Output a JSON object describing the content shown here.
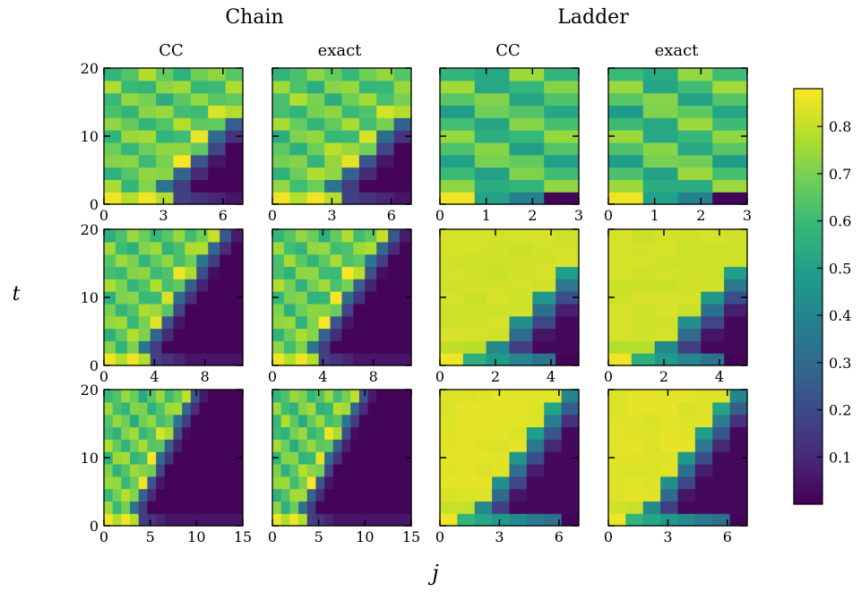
{
  "titles": {
    "group_left": "Chain",
    "group_right": "Ladder"
  },
  "column_titles": [
    "CC",
    "exact",
    "CC",
    "exact"
  ],
  "axis_labels": {
    "x": "j",
    "y": "t"
  },
  "colormap": {
    "name": "viridis",
    "range": [
      0,
      0.88
    ],
    "ticks": [
      0.1,
      0.2,
      0.3,
      0.4,
      0.5,
      0.6,
      0.7,
      0.8
    ],
    "tick_labels": [
      "0.1",
      "0.2",
      "0.3",
      "0.4",
      "0.5",
      "0.6",
      "0.7",
      "0.8"
    ],
    "stops": [
      "#440154",
      "#482878",
      "#3e4989",
      "#31688e",
      "#26828e",
      "#1f9e89",
      "#35b779",
      "#6ece58",
      "#b5de2b",
      "#fde725"
    ]
  },
  "chart_data": [
    {
      "type": "heatmap",
      "row": 1,
      "system": "Chain",
      "method": "CC",
      "xrange": [
        0,
        7
      ],
      "yrange": [
        0,
        20
      ],
      "xticks": [
        0,
        3,
        6
      ],
      "yticks": [
        0,
        10,
        20
      ],
      "nx": 8,
      "ny": 11,
      "grid": false,
      "description": "near 0.8 at j=0..3 for t<2, decaying to ~0 at j=5..7; ~0.6-0.75 elsewhere"
    },
    {
      "type": "heatmap",
      "row": 1,
      "system": "Chain",
      "method": "exact",
      "xrange": [
        0,
        7
      ],
      "yrange": [
        0,
        20
      ],
      "xticks": [
        0,
        3,
        6
      ],
      "yticks": [
        0,
        10,
        20
      ],
      "nx": 8,
      "ny": 11,
      "grid": false
    },
    {
      "type": "heatmap",
      "row": 1,
      "system": "Ladder",
      "method": "CC",
      "xrange": [
        0,
        3
      ],
      "yrange": [
        0,
        20
      ],
      "xticks": [
        0,
        1,
        2,
        3
      ],
      "yticks": [
        0,
        10,
        20
      ],
      "nx": 4,
      "ny": 11,
      "grid": false
    },
    {
      "type": "heatmap",
      "row": 1,
      "system": "Ladder",
      "method": "exact",
      "xrange": [
        0,
        3
      ],
      "yrange": [
        0,
        20
      ],
      "xticks": [
        0,
        1,
        2,
        3
      ],
      "yticks": [
        0,
        10,
        20
      ],
      "nx": 4,
      "ny": 11,
      "grid": false
    },
    {
      "type": "heatmap",
      "row": 2,
      "system": "Chain",
      "method": "CC",
      "xrange": [
        0,
        11
      ],
      "yrange": [
        0,
        20
      ],
      "xticks": [
        0,
        4,
        8
      ],
      "yticks": [
        0,
        10,
        20
      ],
      "nx": 12,
      "ny": 11,
      "grid": false
    },
    {
      "type": "heatmap",
      "row": 2,
      "system": "Chain",
      "method": "exact",
      "xrange": [
        0,
        11
      ],
      "yrange": [
        0,
        20
      ],
      "xticks": [
        0,
        4,
        8
      ],
      "yticks": [
        0,
        10,
        20
      ],
      "nx": 12,
      "ny": 11,
      "grid": false
    },
    {
      "type": "heatmap",
      "row": 2,
      "system": "Ladder",
      "method": "CC",
      "xrange": [
        0,
        5
      ],
      "yrange": [
        0,
        20
      ],
      "xticks": [
        0,
        2,
        4
      ],
      "yticks": [
        0,
        10,
        20
      ],
      "nx": 6,
      "ny": 11,
      "grid": false
    },
    {
      "type": "heatmap",
      "row": 2,
      "system": "Ladder",
      "method": "exact",
      "xrange": [
        0,
        5
      ],
      "yrange": [
        0,
        20
      ],
      "xticks": [
        0,
        2,
        4
      ],
      "yticks": [
        0,
        10,
        20
      ],
      "nx": 6,
      "ny": 11,
      "grid": false
    },
    {
      "type": "heatmap",
      "row": 3,
      "system": "Chain",
      "method": "CC",
      "xrange": [
        0,
        15
      ],
      "yrange": [
        0,
        20
      ],
      "xticks": [
        0,
        5,
        10,
        15
      ],
      "yticks": [
        0,
        10,
        20
      ],
      "nx": 16,
      "ny": 11,
      "grid": false
    },
    {
      "type": "heatmap",
      "row": 3,
      "system": "Chain",
      "method": "exact",
      "xrange": [
        0,
        15
      ],
      "yrange": [
        0,
        20
      ],
      "xticks": [
        0,
        5,
        10,
        15
      ],
      "yticks": [
        0,
        10,
        20
      ],
      "nx": 16,
      "ny": 11,
      "grid": false
    },
    {
      "type": "heatmap",
      "row": 3,
      "system": "Ladder",
      "method": "CC",
      "xrange": [
        0,
        7
      ],
      "yrange": [
        0,
        20
      ],
      "xticks": [
        0,
        3,
        6
      ],
      "yticks": [
        0,
        10,
        20
      ],
      "nx": 8,
      "ny": 11,
      "grid": false
    },
    {
      "type": "heatmap",
      "row": 3,
      "system": "Ladder",
      "method": "exact",
      "xrange": [
        0,
        7
      ],
      "yrange": [
        0,
        20
      ],
      "xticks": [
        0,
        3,
        6
      ],
      "yticks": [
        0,
        10,
        20
      ],
      "nx": 8,
      "ny": 11,
      "grid": false
    }
  ]
}
